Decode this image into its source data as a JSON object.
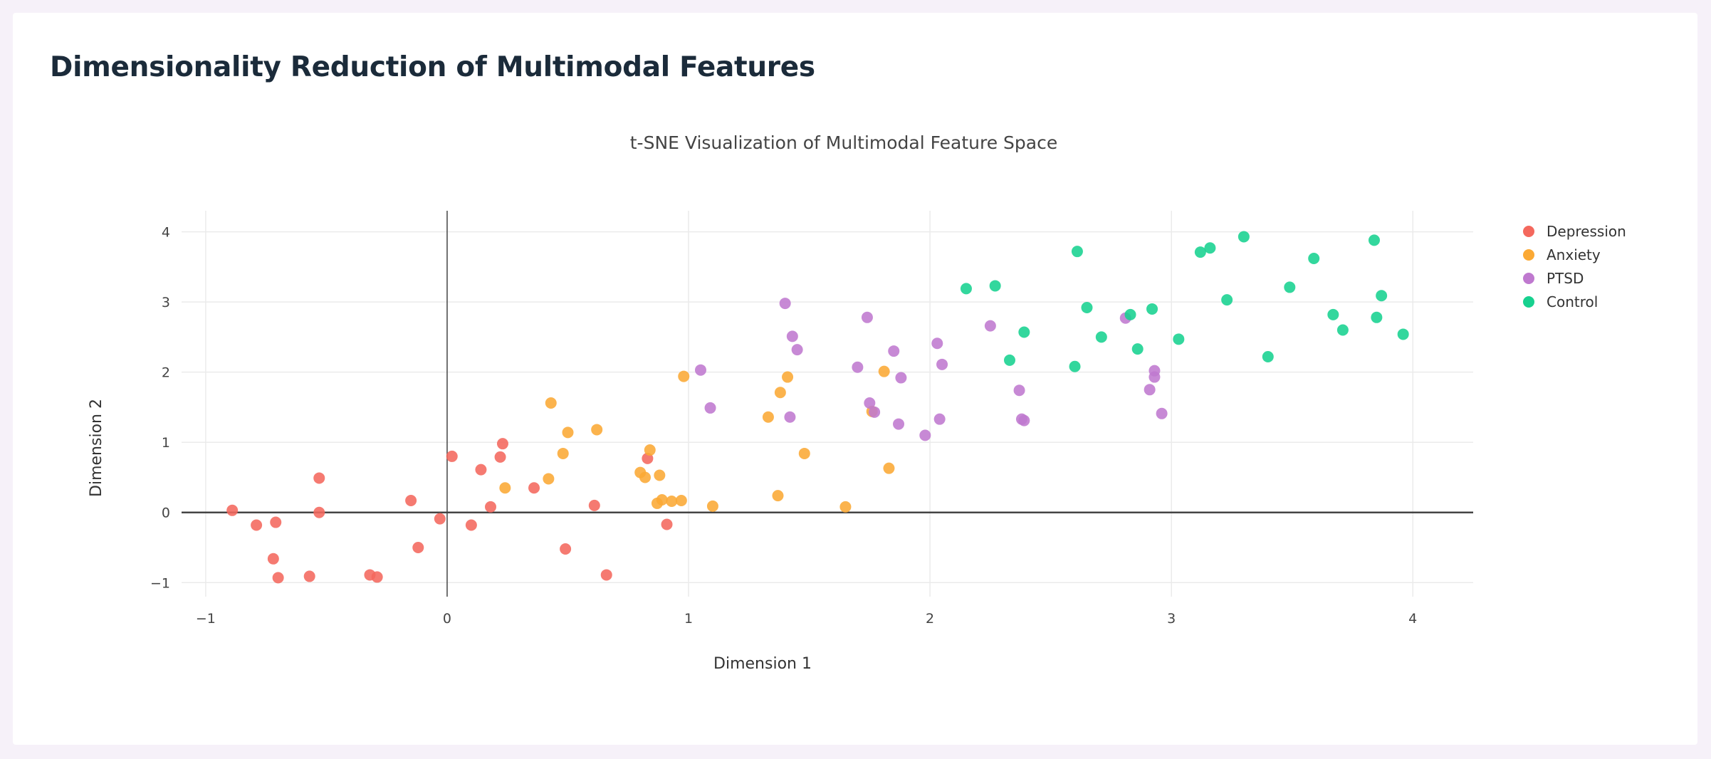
{
  "page": {
    "title": "Dimensionality Reduction of Multimodal Features"
  },
  "chart_data": {
    "type": "scatter",
    "title": "t-SNE Visualization of Multimodal Feature Space",
    "xlabel": "Dimension 1",
    "ylabel": "Dimension 2",
    "xlim": [
      -1.1,
      4.25
    ],
    "ylim": [
      -1.2,
      4.3
    ],
    "xticks": [
      -1,
      0,
      1,
      2,
      3,
      4
    ],
    "yticks": [
      -1,
      0,
      1,
      2,
      3,
      4
    ],
    "grid": true,
    "zero_lines": true,
    "legend_position": "right",
    "series": [
      {
        "name": "Depression",
        "color": "#f4685d",
        "x": [
          -0.89,
          -0.79,
          -0.71,
          -0.72,
          -0.7,
          -0.57,
          -0.53,
          -0.53,
          -0.32,
          -0.29,
          -0.15,
          -0.12,
          -0.03,
          0.02,
          0.1,
          0.14,
          0.18,
          0.22,
          0.23,
          0.36,
          0.49,
          0.61,
          0.66,
          0.83,
          0.91
        ],
        "y": [
          0.03,
          -0.18,
          -0.14,
          -0.66,
          -0.93,
          -0.91,
          0.49,
          0.0,
          -0.89,
          -0.92,
          0.17,
          -0.5,
          -0.09,
          0.8,
          -0.18,
          0.61,
          0.08,
          0.79,
          0.98,
          0.35,
          -0.52,
          0.1,
          -0.89,
          0.77,
          -0.17
        ]
      },
      {
        "name": "Anxiety",
        "color": "#fba934",
        "x": [
          0.24,
          0.42,
          0.43,
          0.48,
          0.5,
          0.62,
          0.8,
          0.82,
          0.84,
          0.87,
          0.88,
          0.89,
          0.93,
          0.97,
          0.98,
          1.1,
          1.33,
          1.37,
          1.38,
          1.41,
          1.48,
          1.65,
          1.76,
          1.81,
          1.83
        ],
        "y": [
          0.35,
          0.48,
          1.56,
          0.84,
          1.14,
          1.18,
          0.57,
          0.5,
          0.89,
          0.13,
          0.53,
          0.18,
          0.16,
          0.17,
          1.94,
          0.09,
          1.36,
          0.24,
          1.71,
          1.93,
          0.84,
          0.08,
          1.44,
          2.01,
          0.63
        ]
      },
      {
        "name": "PTSD",
        "color": "#bf79cf",
        "x": [
          1.05,
          1.09,
          1.4,
          1.42,
          1.43,
          1.45,
          1.7,
          1.74,
          1.75,
          1.77,
          1.85,
          1.87,
          1.88,
          1.98,
          2.03,
          2.04,
          2.05,
          2.25,
          2.37,
          2.38,
          2.39,
          2.81,
          2.91,
          2.93,
          2.93,
          2.96
        ],
        "y": [
          2.03,
          1.49,
          2.98,
          1.36,
          2.51,
          2.32,
          2.07,
          2.78,
          1.56,
          1.43,
          2.3,
          1.26,
          1.92,
          1.1,
          2.41,
          1.33,
          2.11,
          2.66,
          1.74,
          1.33,
          1.31,
          2.77,
          1.75,
          1.93,
          2.02,
          1.41
        ]
      },
      {
        "name": "Control",
        "color": "#17d18f",
        "x": [
          2.15,
          2.27,
          2.33,
          2.39,
          2.6,
          2.61,
          2.65,
          2.71,
          2.83,
          2.86,
          2.92,
          3.03,
          3.12,
          3.16,
          3.23,
          3.3,
          3.4,
          3.49,
          3.59,
          3.67,
          3.71,
          3.84,
          3.85,
          3.87,
          3.96
        ],
        "y": [
          3.19,
          3.23,
          2.17,
          2.57,
          2.08,
          3.72,
          2.92,
          2.5,
          2.82,
          2.33,
          2.9,
          2.47,
          3.71,
          3.77,
          3.03,
          3.93,
          2.22,
          3.21,
          3.62,
          2.82,
          2.6,
          3.88,
          2.78,
          3.09,
          2.54
        ]
      }
    ]
  }
}
